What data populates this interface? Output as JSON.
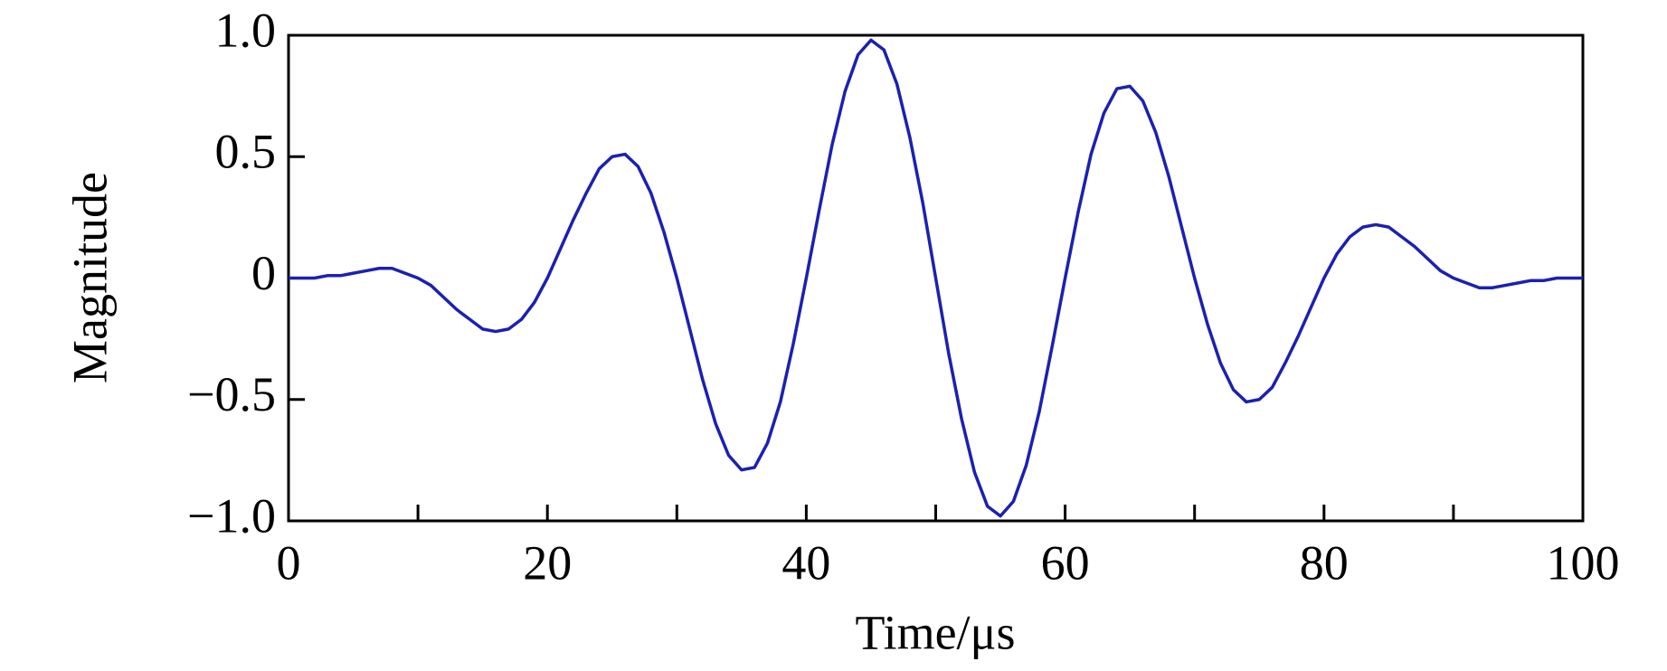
{
  "chart_data": {
    "type": "line",
    "x_label": "Time/μs",
    "y_label": "Magnitude",
    "x": [
      0,
      1,
      2,
      3,
      4,
      5,
      6,
      7,
      8,
      9,
      10,
      11,
      12,
      13,
      14,
      15,
      16,
      17,
      18,
      19,
      20,
      21,
      22,
      23,
      24,
      25,
      26,
      27,
      28,
      29,
      30,
      31,
      32,
      33,
      34,
      35,
      36,
      37,
      38,
      39,
      40,
      41,
      42,
      43,
      44,
      45,
      46,
      47,
      48,
      49,
      50,
      51,
      52,
      53,
      54,
      55,
      56,
      57,
      58,
      59,
      60,
      61,
      62,
      63,
      64,
      65,
      66,
      67,
      68,
      69,
      70,
      71,
      72,
      73,
      74,
      75,
      76,
      77,
      78,
      79,
      80,
      81,
      82,
      83,
      84,
      85,
      86,
      87,
      88,
      89,
      90,
      91,
      92,
      93,
      94,
      95,
      96,
      97,
      98,
      99,
      100
    ],
    "series": [
      {
        "color": "#1c20b0",
        "values": [
          0,
          0,
          0,
          0.01,
          0.01,
          0.02,
          0.03,
          0.04,
          0.04,
          0.02,
          0,
          -0.03,
          -0.08,
          -0.13,
          -0.17,
          -0.21,
          -0.22,
          -0.21,
          -0.17,
          -0.1,
          0,
          0.12,
          0.24,
          0.35,
          0.45,
          0.5,
          0.51,
          0.46,
          0.35,
          0.19,
          0,
          -0.21,
          -0.42,
          -0.6,
          -0.73,
          -0.79,
          -0.78,
          -0.68,
          -0.51,
          -0.27,
          0,
          0.28,
          0.55,
          0.77,
          0.92,
          0.98,
          0.94,
          0.8,
          0.58,
          0.31,
          0,
          -0.31,
          -0.58,
          -0.8,
          -0.94,
          -0.98,
          -0.92,
          -0.77,
          -0.55,
          -0.28,
          0,
          0.27,
          0.51,
          0.68,
          0.78,
          0.79,
          0.73,
          0.6,
          0.42,
          0.21,
          0,
          -0.19,
          -0.35,
          -0.46,
          -0.51,
          -0.5,
          -0.45,
          -0.35,
          -0.24,
          -0.12,
          0,
          0.1,
          0.17,
          0.21,
          0.22,
          0.21,
          0.17,
          0.13,
          0.08,
          0.03,
          0,
          -0.02,
          -0.04,
          -0.04,
          -0.03,
          -0.02,
          -0.01,
          -0.01,
          0,
          0,
          0
        ]
      }
    ],
    "xlim": [
      0,
      100
    ],
    "xticks": [
      0,
      20,
      40,
      60,
      80,
      100
    ],
    "xminor_ticks": [
      10,
      30,
      50,
      70,
      90
    ],
    "ylim": [
      -1,
      1
    ],
    "yticks": [
      {
        "value": -1,
        "label": "−1.0"
      },
      {
        "value": -0.5,
        "label": "−0.5"
      },
      0,
      0.5,
      {
        "value": 1,
        "label": "1.0"
      }
    ],
    "grid": false
  }
}
